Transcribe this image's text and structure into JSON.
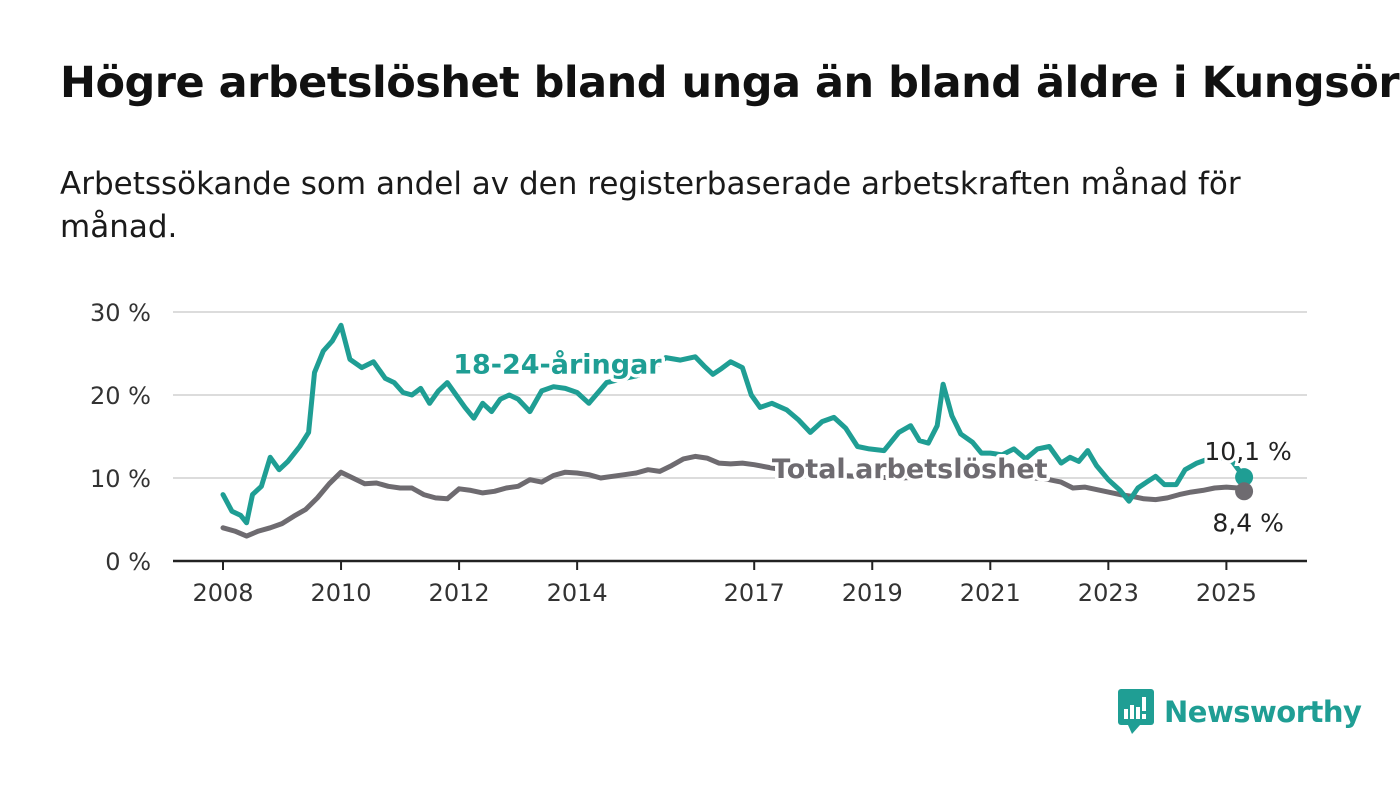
{
  "header": {
    "title": "Högre arbetslöshet bland unga än bland äldre i Kungsör",
    "subtitle": "Arbetssökande som andel av den registerbaserade arbetskraften månad för månad."
  },
  "brand": {
    "name": "Newsworthy",
    "icon": "newsworthy-logo-icon",
    "color": "#1f9e94"
  },
  "chart_data": {
    "type": "line",
    "title": "Högre arbetslöshet bland unga än bland äldre i Kungsör",
    "ylim": [
      0,
      30
    ],
    "xlim": [
      2008,
      2025.4
    ],
    "y_ticks": [
      {
        "value": 0,
        "label": "0 %"
      },
      {
        "value": 10,
        "label": "10 %"
      },
      {
        "value": 20,
        "label": "20 %"
      },
      {
        "value": 30,
        "label": "30 %"
      }
    ],
    "x_ticks": [
      {
        "value": 2008,
        "label": "2008"
      },
      {
        "value": 2010,
        "label": "2010"
      },
      {
        "value": 2012,
        "label": "2012"
      },
      {
        "value": 2014,
        "label": "2014"
      },
      {
        "value": 2017,
        "label": "2017"
      },
      {
        "value": 2019,
        "label": "2019"
      },
      {
        "value": 2021,
        "label": "2021"
      },
      {
        "value": 2023,
        "label": "2023"
      },
      {
        "value": 2025,
        "label": "2025"
      }
    ],
    "grid": true,
    "series": [
      {
        "name": "18-24-åringar",
        "color": "#1f9e94",
        "end_label": "10,1 %",
        "points": [
          [
            2008.0,
            8.0
          ],
          [
            2008.15,
            6.0
          ],
          [
            2008.3,
            5.5
          ],
          [
            2008.4,
            4.6
          ],
          [
            2008.5,
            8.0
          ],
          [
            2008.65,
            9.0
          ],
          [
            2008.8,
            12.5
          ],
          [
            2008.95,
            11.0
          ],
          [
            2009.1,
            12.0
          ],
          [
            2009.3,
            13.8
          ],
          [
            2009.45,
            15.5
          ],
          [
            2009.55,
            22.7
          ],
          [
            2009.7,
            25.3
          ],
          [
            2009.85,
            26.5
          ],
          [
            2010.0,
            28.4
          ],
          [
            2010.15,
            24.3
          ],
          [
            2010.35,
            23.3
          ],
          [
            2010.55,
            24.0
          ],
          [
            2010.75,
            22.0
          ],
          [
            2010.9,
            21.5
          ],
          [
            2011.05,
            20.3
          ],
          [
            2011.2,
            20.0
          ],
          [
            2011.35,
            20.8
          ],
          [
            2011.5,
            19.0
          ],
          [
            2011.65,
            20.5
          ],
          [
            2011.8,
            21.5
          ],
          [
            2011.95,
            20.0
          ],
          [
            2012.1,
            18.5
          ],
          [
            2012.25,
            17.2
          ],
          [
            2012.4,
            19.0
          ],
          [
            2012.55,
            18.0
          ],
          [
            2012.7,
            19.5
          ],
          [
            2012.85,
            20.0
          ],
          [
            2013.0,
            19.5
          ],
          [
            2013.2,
            18.0
          ],
          [
            2013.4,
            20.5
          ],
          [
            2013.6,
            21.0
          ],
          [
            2013.8,
            20.8
          ],
          [
            2014.0,
            20.3
          ],
          [
            2014.2,
            19.0
          ],
          [
            2014.5,
            21.5
          ],
          [
            2014.8,
            22.0
          ],
          [
            2015.0,
            22.3
          ],
          [
            2015.25,
            23.0
          ],
          [
            2015.5,
            24.5
          ],
          [
            2015.75,
            24.2
          ],
          [
            2016.0,
            24.6
          ],
          [
            2016.15,
            23.5
          ],
          [
            2016.3,
            22.5
          ],
          [
            2016.45,
            23.2
          ],
          [
            2016.6,
            24.0
          ],
          [
            2016.8,
            23.3
          ],
          [
            2016.95,
            20.0
          ],
          [
            2017.1,
            18.5
          ],
          [
            2017.3,
            19.0
          ],
          [
            2017.55,
            18.2
          ],
          [
            2017.75,
            17.0
          ],
          [
            2017.95,
            15.5
          ],
          [
            2018.15,
            16.8
          ],
          [
            2018.35,
            17.3
          ],
          [
            2018.55,
            16.0
          ],
          [
            2018.75,
            13.8
          ],
          [
            2018.95,
            13.5
          ],
          [
            2019.2,
            13.3
          ],
          [
            2019.45,
            15.5
          ],
          [
            2019.65,
            16.3
          ],
          [
            2019.8,
            14.5
          ],
          [
            2019.95,
            14.2
          ],
          [
            2020.1,
            16.3
          ],
          [
            2020.2,
            21.3
          ],
          [
            2020.35,
            17.5
          ],
          [
            2020.5,
            15.3
          ],
          [
            2020.7,
            14.3
          ],
          [
            2020.85,
            13.0
          ],
          [
            2021.0,
            13.0
          ],
          [
            2021.2,
            12.8
          ],
          [
            2021.4,
            13.5
          ],
          [
            2021.6,
            12.3
          ],
          [
            2021.8,
            13.5
          ],
          [
            2022.0,
            13.8
          ],
          [
            2022.2,
            11.8
          ],
          [
            2022.35,
            12.5
          ],
          [
            2022.5,
            12.0
          ],
          [
            2022.65,
            13.3
          ],
          [
            2022.8,
            11.5
          ],
          [
            2023.0,
            9.8
          ],
          [
            2023.2,
            8.5
          ],
          [
            2023.35,
            7.2
          ],
          [
            2023.5,
            8.8
          ],
          [
            2023.65,
            9.5
          ],
          [
            2023.8,
            10.2
          ],
          [
            2023.95,
            9.2
          ],
          [
            2024.15,
            9.2
          ],
          [
            2024.3,
            11.0
          ],
          [
            2024.5,
            11.8
          ],
          [
            2024.7,
            12.3
          ],
          [
            2024.9,
            12.5
          ],
          [
            2025.1,
            12.0
          ],
          [
            2025.3,
            10.1
          ]
        ]
      },
      {
        "name": "Total arbetslöshet",
        "color": "#6e6b70",
        "end_label": "8,4 %",
        "points": [
          [
            2008.0,
            4.0
          ],
          [
            2008.2,
            3.6
          ],
          [
            2008.4,
            3.0
          ],
          [
            2008.6,
            3.6
          ],
          [
            2008.8,
            4.0
          ],
          [
            2009.0,
            4.5
          ],
          [
            2009.2,
            5.4
          ],
          [
            2009.4,
            6.2
          ],
          [
            2009.6,
            7.6
          ],
          [
            2009.8,
            9.3
          ],
          [
            2010.0,
            10.7
          ],
          [
            2010.2,
            10.0
          ],
          [
            2010.4,
            9.3
          ],
          [
            2010.6,
            9.4
          ],
          [
            2010.8,
            9.0
          ],
          [
            2011.0,
            8.8
          ],
          [
            2011.2,
            8.8
          ],
          [
            2011.4,
            8.0
          ],
          [
            2011.6,
            7.6
          ],
          [
            2011.8,
            7.5
          ],
          [
            2012.0,
            8.7
          ],
          [
            2012.2,
            8.5
          ],
          [
            2012.4,
            8.2
          ],
          [
            2012.6,
            8.4
          ],
          [
            2012.8,
            8.8
          ],
          [
            2013.0,
            9.0
          ],
          [
            2013.2,
            9.8
          ],
          [
            2013.4,
            9.5
          ],
          [
            2013.6,
            10.3
          ],
          [
            2013.8,
            10.7
          ],
          [
            2014.0,
            10.6
          ],
          [
            2014.2,
            10.4
          ],
          [
            2014.4,
            10.0
          ],
          [
            2014.6,
            10.2
          ],
          [
            2014.8,
            10.4
          ],
          [
            2015.0,
            10.6
          ],
          [
            2015.2,
            11.0
          ],
          [
            2015.4,
            10.8
          ],
          [
            2015.6,
            11.5
          ],
          [
            2015.8,
            12.3
          ],
          [
            2016.0,
            12.6
          ],
          [
            2016.2,
            12.4
          ],
          [
            2016.4,
            11.8
          ],
          [
            2016.6,
            11.7
          ],
          [
            2016.8,
            11.8
          ],
          [
            2017.0,
            11.6
          ],
          [
            2017.3,
            11.2
          ],
          [
            2017.6,
            10.9
          ],
          [
            2018.0,
            10.6
          ],
          [
            2018.5,
            10.3
          ],
          [
            2019.0,
            10.1
          ],
          [
            2019.5,
            10.0
          ],
          [
            2020.0,
            10.2
          ],
          [
            2020.5,
            10.5
          ],
          [
            2021.0,
            10.3
          ],
          [
            2021.5,
            10.2
          ],
          [
            2022.0,
            9.8
          ],
          [
            2022.2,
            9.5
          ],
          [
            2022.4,
            8.8
          ],
          [
            2022.6,
            8.9
          ],
          [
            2022.8,
            8.6
          ],
          [
            2023.0,
            8.3
          ],
          [
            2023.2,
            8.0
          ],
          [
            2023.4,
            7.8
          ],
          [
            2023.6,
            7.5
          ],
          [
            2023.8,
            7.4
          ],
          [
            2024.0,
            7.6
          ],
          [
            2024.2,
            8.0
          ],
          [
            2024.4,
            8.3
          ],
          [
            2024.6,
            8.5
          ],
          [
            2024.8,
            8.8
          ],
          [
            2025.0,
            8.9
          ],
          [
            2025.2,
            8.8
          ],
          [
            2025.3,
            8.4
          ]
        ]
      }
    ],
    "series_labels": [
      {
        "text": "18-24-åringar",
        "x": 2011.9,
        "y": 22.6,
        "series": 0
      },
      {
        "text": "Total arbetslöshet",
        "x": 2017.3,
        "y": 10.0,
        "series": 1
      }
    ]
  }
}
